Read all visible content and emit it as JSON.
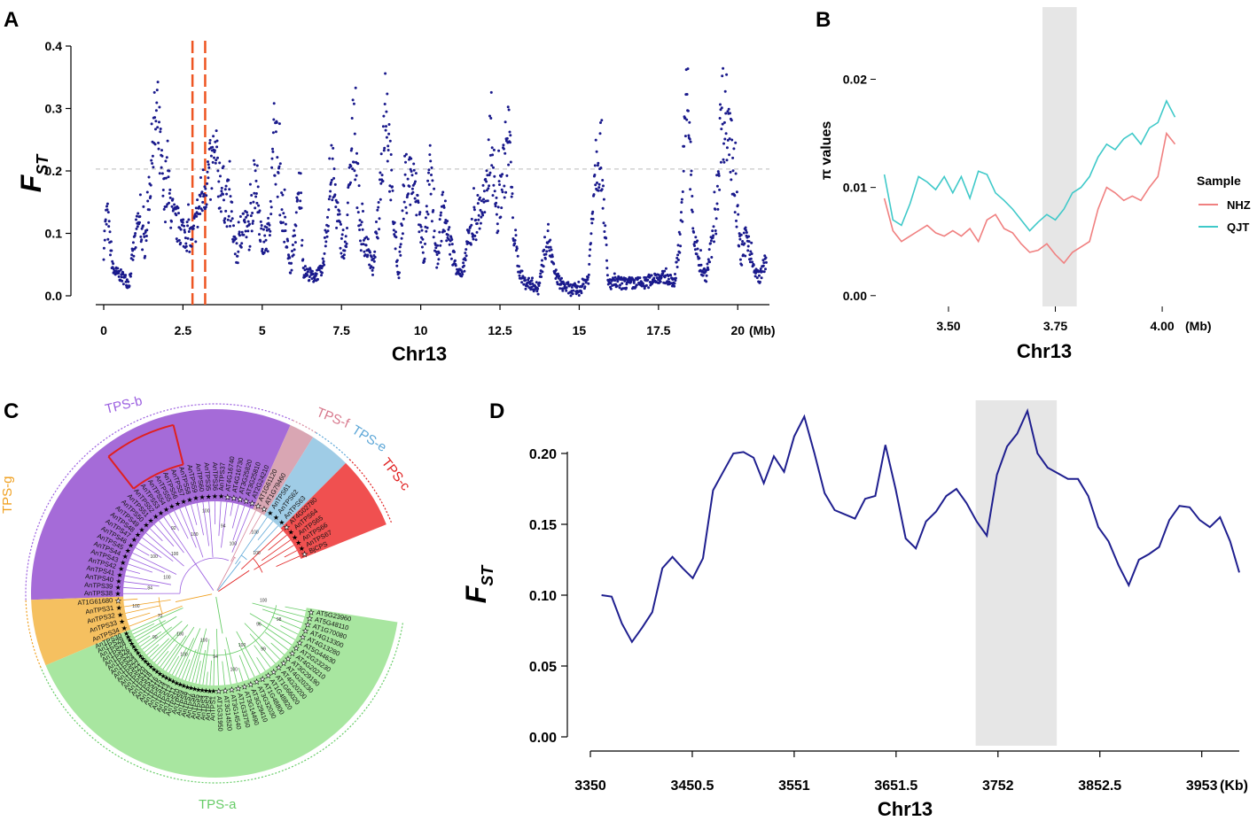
{
  "panels": {
    "A": {
      "label": "A",
      "chart_data": {
        "type": "scatter",
        "xlabel": "Chr13",
        "x_unit": "(Mb)",
        "ylabel_main": "F",
        "ylabel_sub": "ST",
        "xlim": [
          0,
          21
        ],
        "ylim": [
          0,
          0.4
        ],
        "xticks": [
          0,
          2.5,
          5,
          7.5,
          10,
          12.5,
          15,
          17.5,
          20
        ],
        "xtick_labels": [
          "0",
          "2.5",
          "5",
          "7.5",
          "10",
          "12.5",
          "15",
          "17.5",
          "20"
        ],
        "yticks": [
          0,
          0.1,
          0.2,
          0.3,
          0.4
        ],
        "ytick_labels": [
          "0.0",
          "0.1",
          "0.2",
          "0.3",
          "0.4"
        ],
        "threshold": 0.203,
        "highlight_region": [
          2.8,
          3.2
        ],
        "point_color": "#1a1a8c",
        "threshold_color": "#bbbbbb",
        "highlight_color": "#ee5522",
        "profile": [
          [
            0.0,
            0.08
          ],
          [
            0.1,
            0.13
          ],
          [
            0.3,
            0.04
          ],
          [
            0.6,
            0.03
          ],
          [
            0.8,
            0.02
          ],
          [
            0.9,
            0.06
          ],
          [
            1.1,
            0.12
          ],
          [
            1.3,
            0.08
          ],
          [
            1.5,
            0.21
          ],
          [
            1.6,
            0.26
          ],
          [
            1.7,
            0.28
          ],
          [
            1.9,
            0.15
          ],
          [
            2.0,
            0.18
          ],
          [
            2.2,
            0.12
          ],
          [
            2.4,
            0.11
          ],
          [
            2.6,
            0.1
          ],
          [
            2.8,
            0.09
          ],
          [
            3.0,
            0.14
          ],
          [
            3.2,
            0.18
          ],
          [
            3.5,
            0.21
          ],
          [
            3.8,
            0.16
          ],
          [
            4.0,
            0.14
          ],
          [
            4.2,
            0.06
          ],
          [
            4.4,
            0.12
          ],
          [
            4.6,
            0.1
          ],
          [
            4.8,
            0.2
          ],
          [
            5.0,
            0.08
          ],
          [
            5.2,
            0.1
          ],
          [
            5.4,
            0.26
          ],
          [
            5.5,
            0.2
          ],
          [
            5.7,
            0.11
          ],
          [
            5.9,
            0.04
          ],
          [
            6.2,
            0.18
          ],
          [
            6.3,
            0.04
          ],
          [
            6.6,
            0.03
          ],
          [
            6.9,
            0.04
          ],
          [
            7.2,
            0.2
          ],
          [
            7.4,
            0.12
          ],
          [
            7.6,
            0.06
          ],
          [
            7.9,
            0.28
          ],
          [
            8.1,
            0.1
          ],
          [
            8.3,
            0.08
          ],
          [
            8.5,
            0.04
          ],
          [
            8.7,
            0.15
          ],
          [
            8.9,
            0.33
          ],
          [
            9.1,
            0.15
          ],
          [
            9.3,
            0.03
          ],
          [
            9.5,
            0.18
          ],
          [
            9.7,
            0.19
          ],
          [
            9.9,
            0.15
          ],
          [
            10.1,
            0.06
          ],
          [
            10.3,
            0.2
          ],
          [
            10.5,
            0.05
          ],
          [
            10.7,
            0.14
          ],
          [
            10.9,
            0.09
          ],
          [
            11.1,
            0.05
          ],
          [
            11.3,
            0.03
          ],
          [
            11.5,
            0.09
          ],
          [
            11.8,
            0.13
          ],
          [
            12.1,
            0.16
          ],
          [
            12.2,
            0.28
          ],
          [
            12.4,
            0.12
          ],
          [
            12.6,
            0.2
          ],
          [
            12.8,
            0.26
          ],
          [
            12.9,
            0.12
          ],
          [
            13.1,
            0.04
          ],
          [
            13.3,
            0.02
          ],
          [
            13.5,
            0.02
          ],
          [
            13.7,
            0.01
          ],
          [
            14.0,
            0.1
          ],
          [
            14.2,
            0.04
          ],
          [
            14.4,
            0.02
          ],
          [
            14.7,
            0.01
          ],
          [
            15.0,
            0.01
          ],
          [
            15.3,
            0.03
          ],
          [
            15.5,
            0.22
          ],
          [
            15.7,
            0.23
          ],
          [
            15.9,
            0.02
          ],
          [
            16.2,
            0.02
          ],
          [
            16.5,
            0.02
          ],
          [
            16.8,
            0.02
          ],
          [
            17.1,
            0.02
          ],
          [
            17.4,
            0.03
          ],
          [
            17.7,
            0.03
          ],
          [
            18.0,
            0.02
          ],
          [
            18.2,
            0.1
          ],
          [
            18.4,
            0.33
          ],
          [
            18.6,
            0.1
          ],
          [
            18.8,
            0.05
          ],
          [
            19.0,
            0.03
          ],
          [
            19.3,
            0.12
          ],
          [
            19.5,
            0.3
          ],
          [
            19.7,
            0.28
          ],
          [
            19.9,
            0.18
          ],
          [
            20.1,
            0.06
          ],
          [
            20.3,
            0.1
          ],
          [
            20.5,
            0.04
          ],
          [
            20.7,
            0.03
          ],
          [
            20.9,
            0.06
          ]
        ]
      }
    },
    "B": {
      "label": "B",
      "chart_data": {
        "type": "line",
        "xlabel": "Chr13",
        "x_unit": "(Mb)",
        "ylabel": "π values",
        "xlim": [
          3.33,
          4.06
        ],
        "ylim": [
          -0.001,
          0.027
        ],
        "xticks": [
          3.5,
          3.75,
          4.0
        ],
        "xtick_labels": [
          "3.50",
          "3.75",
          "4.00"
        ],
        "yticks": [
          0,
          0.01,
          0.02
        ],
        "ytick_labels": [
          "0.00",
          "0.01",
          "0.02"
        ],
        "highlight_region": [
          3.72,
          3.8
        ],
        "legend_title": "Sample",
        "legend_position": "right",
        "series": [
          {
            "name": "NHZ",
            "color": "#f08080",
            "x": [
              3.35,
              3.37,
              3.39,
              3.41,
              3.43,
              3.45,
              3.47,
              3.49,
              3.51,
              3.53,
              3.55,
              3.57,
              3.59,
              3.61,
              3.63,
              3.65,
              3.67,
              3.69,
              3.71,
              3.73,
              3.75,
              3.77,
              3.79,
              3.81,
              3.83,
              3.85,
              3.87,
              3.89,
              3.91,
              3.93,
              3.95,
              3.97,
              3.99,
              4.01,
              4.03
            ],
            "values": [
              0.009,
              0.006,
              0.005,
              0.0055,
              0.006,
              0.0065,
              0.0058,
              0.0055,
              0.006,
              0.0055,
              0.0062,
              0.005,
              0.007,
              0.0075,
              0.0062,
              0.0058,
              0.0048,
              0.004,
              0.0042,
              0.0048,
              0.0038,
              0.003,
              0.004,
              0.0045,
              0.005,
              0.008,
              0.01,
              0.0095,
              0.0088,
              0.0092,
              0.0088,
              0.01,
              0.011,
              0.015,
              0.014
            ]
          },
          {
            "name": "QJT",
            "color": "#3fc9c9",
            "x": [
              3.35,
              3.37,
              3.39,
              3.41,
              3.43,
              3.45,
              3.47,
              3.49,
              3.51,
              3.53,
              3.55,
              3.57,
              3.59,
              3.61,
              3.63,
              3.65,
              3.67,
              3.69,
              3.71,
              3.73,
              3.75,
              3.77,
              3.79,
              3.81,
              3.83,
              3.85,
              3.87,
              3.89,
              3.91,
              3.93,
              3.95,
              3.97,
              3.99,
              4.01,
              4.03
            ],
            "values": [
              0.0112,
              0.007,
              0.0065,
              0.0085,
              0.011,
              0.0105,
              0.0098,
              0.011,
              0.0095,
              0.011,
              0.009,
              0.0115,
              0.0112,
              0.0095,
              0.0088,
              0.008,
              0.007,
              0.006,
              0.0068,
              0.0075,
              0.007,
              0.008,
              0.0095,
              0.01,
              0.011,
              0.0128,
              0.014,
              0.0135,
              0.0145,
              0.015,
              0.014,
              0.0155,
              0.016,
              0.018,
              0.0165
            ]
          }
        ]
      }
    },
    "C": {
      "label": "C",
      "clades": [
        {
          "name": "TPS-b",
          "color": "#9b5fe0",
          "fill": "#a56bd8",
          "label_color": "#9b5fe0"
        },
        {
          "name": "TPS-f",
          "color": "#d88a9e",
          "fill": "#d9a6b3",
          "label_color": "#d87a8e"
        },
        {
          "name": "TPS-e",
          "color": "#5fa8d8",
          "fill": "#9fcce6",
          "label_color": "#5fa8d8"
        },
        {
          "name": "TPS-c",
          "color": "#e02020",
          "fill": "#f05050",
          "label_color": "#e02020"
        },
        {
          "name": "TPS-g",
          "color": "#f0a020",
          "fill": "#f5c060",
          "label_color": "#f0a020"
        },
        {
          "name": "TPS-a",
          "color": "#66cc66",
          "fill": "#a8e6a0",
          "label_color": "#66cc66"
        }
      ],
      "leaves_b": [
        "AnTPS38",
        "AnTPS39",
        "AnTPS40",
        "AnTPS41",
        "AnTPS42",
        "AnTPS43",
        "AnTPS44",
        "AnTPS45",
        "AnTPS46",
        "AnTPS47",
        "AnTPS48",
        "AnTPS49",
        "AnTPS50",
        "AnTPS51",
        "AnTPS52",
        "AnTPS53",
        "AnTPS54",
        "AnTPS55",
        "AnTPS56",
        "AnTPS57",
        "AnTPS58",
        "AnTPS59",
        "AnTPS60",
        "AnTPS35",
        "AnTPS36",
        "AnTPS37",
        "AT4G16740",
        "AT4G16730",
        "AT3G25820",
        "AT3G25810",
        "AT2G24210"
      ],
      "leaves_f": [
        "AT1G61120",
        "AT1G79460"
      ],
      "leaves_e": [
        "AnTPS61",
        "AnTPS62",
        "AnTPS63"
      ],
      "leaves_c": [
        "AT4G02780",
        "AnTPS64",
        "AnTPS65",
        "AnTPS66",
        "AnTPS67",
        "BjCPS"
      ],
      "leaves_g": [
        "AnTPS34",
        "AnTPS33",
        "AnTPS32",
        "AnTPS31",
        "AT1G61680"
      ],
      "leaves_a_right": [
        "AT1G31950",
        "AT3G14520",
        "AT3G14540",
        "AT1G33750",
        "AT3G14490",
        "AT3G29410",
        "AT3G32030",
        "AT1G48800",
        "AT1G48820",
        "AT1G66020",
        "AT4G20200",
        "AT4G20230",
        "AT3G29190",
        "AT4G20210",
        "AT2G23230",
        "AT5G44630",
        "AT4G13280",
        "AT4G13300",
        "AT1G70080",
        "AT5G48110",
        "AT5G23960"
      ],
      "leaves_a_left": [
        "AnTPS30",
        "AnTPS29",
        "AnTPS28",
        "AnTPS27",
        "AnTPS26",
        "AnTPS25",
        "AnTPS24",
        "AnTPS23",
        "AnTPS22",
        "AnTPS21",
        "AnTPS20",
        "AnTPS19",
        "AnTPS18",
        "AnTPS17",
        "AnTPS16",
        "AnTPS15",
        "AnTPS14",
        "AnTPS13",
        "AnTPS12",
        "AnTPS11",
        "AnTPS10",
        "AnTPS9",
        "AnTPS8",
        "AnTPS7",
        "AnTPS6",
        "AnTPS5",
        "AnTPS4",
        "AnTPS3",
        "AnTPS2",
        "AnTPS1"
      ],
      "bootstrap": [
        "100",
        "98",
        "96",
        "99",
        "100",
        "100",
        "94",
        "100",
        "100",
        "100",
        "90",
        "70",
        "100",
        "84",
        "100",
        "100",
        "100",
        "92",
        "100",
        "100",
        "94",
        "100",
        "100",
        "100"
      ]
    },
    "D": {
      "label": "D",
      "chart_data": {
        "type": "line",
        "xlabel": "Chr13",
        "x_unit": "(Kb)",
        "ylabel_main": "F",
        "ylabel_sub": "ST",
        "xlim": [
          3350,
          3990
        ],
        "ylim": [
          0,
          0.23
        ],
        "xticks": [
          3350,
          3450.5,
          3551,
          3651.5,
          3752,
          3852.5,
          3953
        ],
        "xtick_labels": [
          "3350",
          "3450.5",
          "3551",
          "3651.5",
          "3752",
          "3852.5",
          "3953"
        ],
        "yticks": [
          0,
          0.05,
          0.1,
          0.15,
          0.2
        ],
        "ytick_labels": [
          "0.00",
          "0.05",
          "0.10",
          "0.15",
          "0.20"
        ],
        "highlight_region": [
          3730,
          3810
        ],
        "series": [
          {
            "name": "FST",
            "color": "#1f1f8f",
            "x": [
              3361,
              3371,
              3381,
              3391,
              3401,
              3411,
              3421,
              3431,
              3441,
              3451,
              3461,
              3471,
              3481,
              3491,
              3501,
              3511,
              3521,
              3531,
              3541,
              3551,
              3561,
              3571,
              3581,
              3591,
              3601,
              3611,
              3621,
              3631,
              3641,
              3651,
              3661,
              3671,
              3681,
              3691,
              3701,
              3711,
              3721,
              3731,
              3741,
              3751,
              3761,
              3771,
              3781,
              3791,
              3801,
              3811,
              3821,
              3831,
              3841,
              3851,
              3861,
              3871,
              3881,
              3891,
              3901,
              3911,
              3921,
              3931,
              3941,
              3951,
              3961,
              3971,
              3981,
              3990
            ],
            "values": [
              0.1,
              0.099,
              0.08,
              0.067,
              0.077,
              0.088,
              0.119,
              0.127,
              0.119,
              0.112,
              0.126,
              0.174,
              0.187,
              0.2,
              0.201,
              0.197,
              0.179,
              0.198,
              0.187,
              0.212,
              0.226,
              0.2,
              0.172,
              0.16,
              0.157,
              0.154,
              0.168,
              0.17,
              0.206,
              0.175,
              0.14,
              0.133,
              0.152,
              0.159,
              0.17,
              0.175,
              0.165,
              0.152,
              0.142,
              0.185,
              0.205,
              0.214,
              0.23,
              0.2,
              0.19,
              0.186,
              0.182,
              0.182,
              0.17,
              0.148,
              0.138,
              0.121,
              0.107,
              0.125,
              0.129,
              0.134,
              0.153,
              0.163,
              0.162,
              0.153,
              0.148,
              0.155,
              0.138,
              0.116
            ]
          }
        ]
      }
    }
  }
}
